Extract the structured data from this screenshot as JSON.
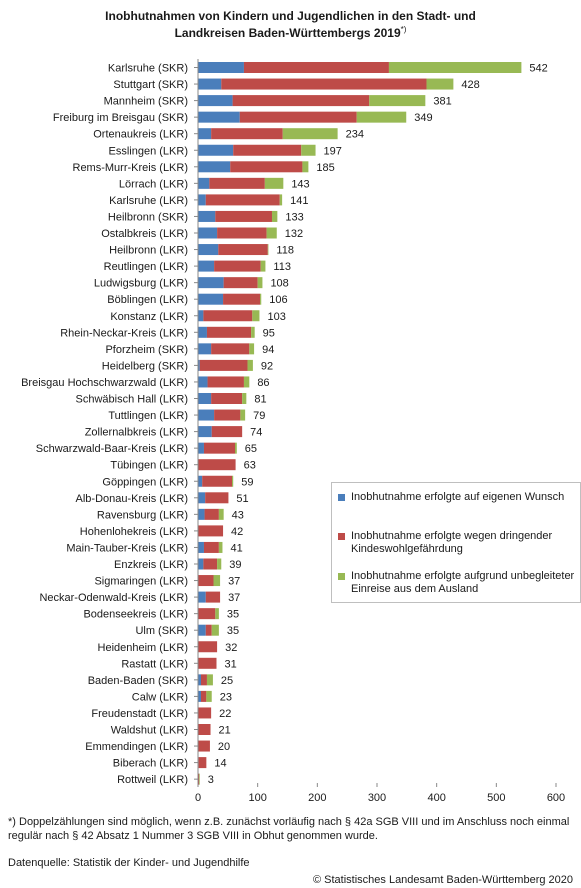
{
  "title": {
    "line1": "Inobhutnahmen von Kindern und Jugendlichen in den Stadt- und",
    "line2": "Landkreisen Baden-Württembergs 2019",
    "marker": "*)"
  },
  "chart_data": {
    "type": "bar",
    "orientation": "horizontal",
    "stacked": true,
    "categories": [
      "Karlsruhe (SKR)",
      "Stuttgart (SKR)",
      "Mannheim (SKR)",
      "Freiburg im Breisgau (SKR)",
      "Ortenaukreis (LKR)",
      "Esslingen (LKR)",
      "Rems-Murr-Kreis (LKR)",
      "Lörrach (LKR)",
      "Karlsruhe (LKR)",
      "Heilbronn (SKR)",
      "Ostalbkreis (LKR)",
      "Heilbronn (LKR)",
      "Reutlingen (LKR)",
      "Ludwigsburg (LKR)",
      "Böblingen (LKR)",
      "Konstanz (LKR)",
      "Rhein-Neckar-Kreis (LKR)",
      "Pforzheim (SKR)",
      "Heidelberg (SKR)",
      "Breisgau Hochschwarzwald (LKR)",
      "Schwäbisch Hall (LKR)",
      "Tuttlingen (LKR)",
      "Zollernalbkreis (LKR)",
      "Schwarzwald-Baar-Kreis (LKR)",
      "Tübingen (LKR)",
      "Göppingen (LKR)",
      "Alb-Donau-Kreis (LKR)",
      "Ravensburg (LKR)",
      "Hohenlohekreis (LKR)",
      "Main-Tauber-Kreis (LKR)",
      "Enzkreis (LKR)",
      "Sigmaringen (LKR)",
      "Neckar-Odenwald-Kreis (LKR)",
      "Bodenseekreis (LKR)",
      "Ulm (SKR)",
      "Heidenheim (LKR)",
      "Rastatt (LKR)",
      "Baden-Baden (SKR)",
      "Calw (LKR)",
      "Freudenstadt (LKR)",
      "Waldshut (LKR)",
      "Emmendingen (LKR)",
      "Biberach (LKR)",
      "Rottweil (LKR)"
    ],
    "series": [
      {
        "name": "Inobhutnahme erfolgte auf eigenen Wunsch",
        "color": "#4a7ebb",
        "values": [
          77,
          39,
          58,
          70,
          22,
          59,
          54,
          19,
          13,
          29,
          32,
          34,
          27,
          43,
          42,
          9,
          15,
          22,
          3,
          16,
          22,
          27,
          23,
          10,
          0,
          7,
          12,
          11,
          0,
          10,
          9,
          0,
          13,
          0,
          13,
          0,
          0,
          5,
          5,
          0,
          0,
          0,
          1,
          0
        ]
      },
      {
        "name": "Inobhutnahme erfolgte wegen dringender Kindeswohlgefährdung",
        "color": "#be4b48",
        "values": [
          243,
          344,
          229,
          196,
          120,
          114,
          121,
          93,
          124,
          95,
          83,
          83,
          78,
          57,
          62,
          82,
          74,
          64,
          80,
          61,
          52,
          44,
          51,
          52,
          63,
          50,
          39,
          24,
          42,
          25,
          23,
          26,
          24,
          29,
          10,
          32,
          31,
          10,
          9,
          22,
          21,
          20,
          13,
          2
        ]
      },
      {
        "name": "Inobhutnahme erfolgte aufgrund unbegleiteter Einreise aus dem Ausland",
        "color": "#98b954",
        "values": [
          222,
          45,
          94,
          83,
          92,
          24,
          10,
          31,
          4,
          9,
          17,
          1,
          8,
          8,
          2,
          12,
          6,
          8,
          9,
          9,
          7,
          8,
          0,
          3,
          0,
          2,
          0,
          8,
          0,
          6,
          7,
          11,
          0,
          6,
          12,
          0,
          0,
          10,
          9,
          0,
          0,
          0,
          0,
          1
        ]
      }
    ],
    "totals": [
      542,
      428,
      381,
      349,
      234,
      197,
      185,
      143,
      141,
      133,
      132,
      118,
      113,
      108,
      106,
      103,
      95,
      94,
      92,
      86,
      81,
      79,
      74,
      65,
      63,
      59,
      51,
      43,
      42,
      41,
      39,
      37,
      37,
      35,
      35,
      32,
      31,
      25,
      23,
      22,
      21,
      20,
      14,
      3
    ],
    "xlim": [
      0,
      600
    ],
    "xticks": [
      0,
      100,
      200,
      300,
      400,
      500,
      600
    ],
    "grid": false,
    "legend_position": "right-inside"
  },
  "footnote": "*) Doppelzählungen sind möglich, wenn z.B. zunächst vorläufig nach § 42a SGB VIII und im Anschluss noch einmal regulär nach § 42 Absatz 1 Nummer 3 SGB VIII in Obhut genommen wurde.",
  "source": "Datenquelle: Statistik der Kinder- und Jugendhilfe",
  "copyright": "© Statistisches Landesamt Baden-Württemberg 2020"
}
